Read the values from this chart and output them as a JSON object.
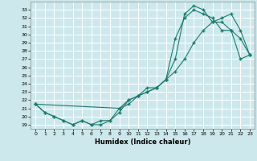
{
  "title": "",
  "xlabel": "Humidex (Indice chaleur)",
  "bg_color": "#cde8ec",
  "grid_color": "#ffffff",
  "line_color": "#1a7a6e",
  "xlim": [
    -0.5,
    23.5
  ],
  "ylim": [
    18.5,
    34.0
  ],
  "xticks": [
    0,
    1,
    2,
    3,
    4,
    5,
    6,
    7,
    8,
    9,
    10,
    11,
    12,
    13,
    14,
    15,
    16,
    17,
    18,
    19,
    20,
    21,
    22,
    23
  ],
  "yticks": [
    19,
    20,
    21,
    22,
    23,
    24,
    25,
    26,
    27,
    28,
    29,
    30,
    31,
    32,
    33
  ],
  "line1_x": [
    0,
    1,
    2,
    3,
    4,
    5,
    6,
    7,
    8,
    9,
    10,
    11,
    12,
    13,
    14,
    15,
    16,
    17,
    18,
    19,
    20,
    21,
    22,
    23
  ],
  "line1_y": [
    21.5,
    20.5,
    20.0,
    19.5,
    19.0,
    19.5,
    19.0,
    19.0,
    19.5,
    20.5,
    22.0,
    22.5,
    23.0,
    23.5,
    24.5,
    27.0,
    32.5,
    33.5,
    33.0,
    31.5,
    31.5,
    30.5,
    29.5,
    27.5
  ],
  "line2_x": [
    0,
    1,
    2,
    3,
    4,
    5,
    6,
    7,
    8,
    9,
    10,
    11,
    12,
    13,
    14,
    15,
    16,
    17,
    18,
    19,
    20,
    21,
    22,
    23
  ],
  "line2_y": [
    21.5,
    20.5,
    20.0,
    19.5,
    19.0,
    19.5,
    19.0,
    19.5,
    19.5,
    21.0,
    21.5,
    22.5,
    23.5,
    23.5,
    24.5,
    29.5,
    32.0,
    33.0,
    32.5,
    32.0,
    30.5,
    30.5,
    27.0,
    27.5
  ],
  "line3_x": [
    0,
    9,
    10,
    11,
    12,
    13,
    14,
    15,
    16,
    17,
    18,
    19,
    20,
    21,
    22,
    23
  ],
  "line3_y": [
    21.5,
    21.0,
    22.0,
    22.5,
    23.0,
    23.5,
    24.5,
    25.5,
    27.0,
    29.0,
    30.5,
    31.5,
    32.0,
    32.5,
    30.5,
    27.5
  ]
}
